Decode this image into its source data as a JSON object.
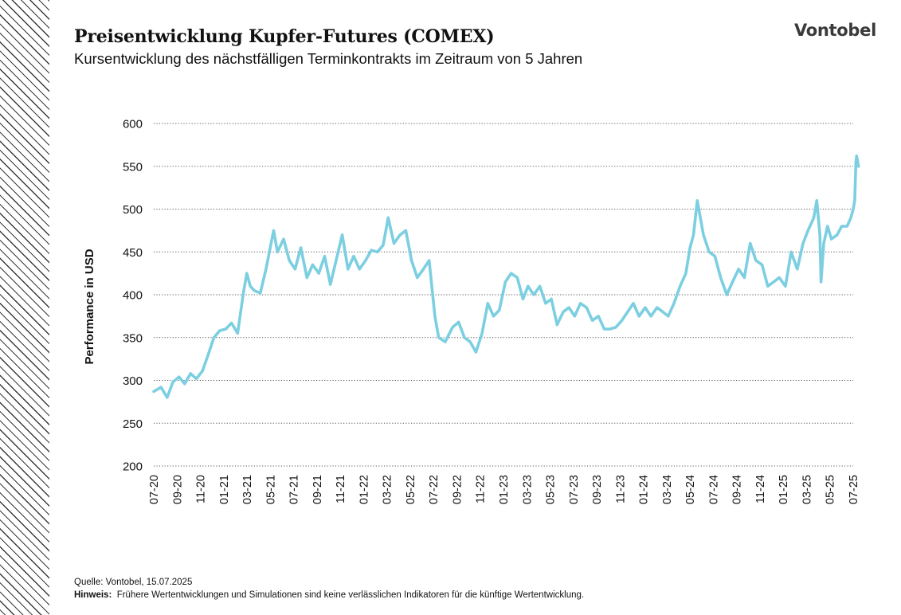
{
  "header": {
    "title": "Preisentwicklung Kupfer-Futures (COMEX)",
    "subtitle": "Kursentwicklung des nächstfälligen Terminkontrakts im Zeitraum von 5 Jahren",
    "brand": "Vontobel"
  },
  "footer": {
    "source": "Quelle: Vontobel, 15.07.2025",
    "note_label": "Hinweis:",
    "note_text": "Frühere Wertentwicklungen und Simulationen sind keine verlässlichen Indikatoren für die künftige Wertentwicklung."
  },
  "colors": {
    "line": "#7ccfe0",
    "grid": "#555555",
    "stripes": "#3a3a3a"
  },
  "chart_data": {
    "type": "line",
    "ylabel": "Performance in USD",
    "xlabel": "",
    "ylim": [
      200,
      600
    ],
    "yticks": [
      200,
      250,
      300,
      350,
      400,
      450,
      500,
      550,
      600
    ],
    "xlim": [
      "2020-07",
      "2025-07"
    ],
    "xticks": [
      "07-20",
      "09-20",
      "11-20",
      "01-21",
      "03-21",
      "05-21",
      "07-21",
      "09-21",
      "11-21",
      "01-22",
      "03-22",
      "05-22",
      "07-22",
      "09-22",
      "11-22",
      "01-23",
      "03-23",
      "05-23",
      "07-23",
      "09-23",
      "11-23",
      "01-24",
      "03-24",
      "05-24",
      "07-24",
      "09-24",
      "11-24",
      "01-25",
      "03-25",
      "05-25",
      "07-25"
    ],
    "grid": "horizontal dotted",
    "legend": "none",
    "series": [
      {
        "x": [
          "2020-07-01",
          "2020-07-20",
          "2020-08-05",
          "2020-08-20",
          "2020-09-05",
          "2020-09-20",
          "2020-10-05",
          "2020-10-20",
          "2020-11-05",
          "2020-11-20",
          "2020-12-05",
          "2020-12-20",
          "2021-01-05",
          "2021-01-20",
          "2021-02-05",
          "2021-02-20",
          "2021-03-01",
          "2021-03-10",
          "2021-03-20",
          "2021-04-05",
          "2021-04-20",
          "2021-05-01",
          "2021-05-10",
          "2021-05-20",
          "2021-06-05",
          "2021-06-20",
          "2021-07-05",
          "2021-07-20",
          "2021-08-05",
          "2021-08-20",
          "2021-09-05",
          "2021-09-20",
          "2021-10-05",
          "2021-10-20",
          "2021-11-05",
          "2021-11-20",
          "2021-12-05",
          "2021-12-20",
          "2022-01-05",
          "2022-01-20",
          "2022-02-05",
          "2022-02-20",
          "2022-03-05",
          "2022-03-20",
          "2022-04-05",
          "2022-04-20",
          "2022-05-05",
          "2022-05-20",
          "2022-06-05",
          "2022-06-20",
          "2022-07-05",
          "2022-07-15",
          "2022-08-01",
          "2022-08-20",
          "2022-09-05",
          "2022-09-20",
          "2022-10-05",
          "2022-10-20",
          "2022-11-05",
          "2022-11-20",
          "2022-12-05",
          "2022-12-20",
          "2023-01-05",
          "2023-01-20",
          "2023-02-05",
          "2023-02-20",
          "2023-03-05",
          "2023-03-20",
          "2023-04-05",
          "2023-04-20",
          "2023-05-05",
          "2023-05-20",
          "2023-06-05",
          "2023-06-20",
          "2023-07-05",
          "2023-07-20",
          "2023-08-05",
          "2023-08-20",
          "2023-09-05",
          "2023-09-20",
          "2023-10-05",
          "2023-10-20",
          "2023-11-05",
          "2023-11-20",
          "2023-12-05",
          "2023-12-20",
          "2024-01-05",
          "2024-01-20",
          "2024-02-05",
          "2024-02-20",
          "2024-03-05",
          "2024-03-20",
          "2024-04-05",
          "2024-04-20",
          "2024-05-01",
          "2024-05-10",
          "2024-05-20",
          "2024-06-05",
          "2024-06-20",
          "2024-07-05",
          "2024-07-20",
          "2024-08-05",
          "2024-08-20",
          "2024-09-05",
          "2024-09-20",
          "2024-10-05",
          "2024-10-20",
          "2024-11-05",
          "2024-11-20",
          "2024-12-05",
          "2024-12-20",
          "2025-01-05",
          "2025-01-20",
          "2025-02-05",
          "2025-02-20",
          "2025-03-05",
          "2025-03-20",
          "2025-03-28",
          "2025-04-05",
          "2025-04-08",
          "2025-04-15",
          "2025-04-25",
          "2025-05-05",
          "2025-05-20",
          "2025-06-01",
          "2025-06-15",
          "2025-06-25",
          "2025-07-01",
          "2025-07-05",
          "2025-07-08",
          "2025-07-10",
          "2025-07-15"
        ],
        "y": [
          287,
          292,
          280,
          298,
          304,
          296,
          308,
          302,
          311,
          330,
          350,
          358,
          360,
          367,
          355,
          402,
          425,
          410,
          405,
          402,
          430,
          455,
          475,
          450,
          465,
          440,
          430,
          455,
          420,
          435,
          425,
          445,
          412,
          440,
          470,
          430,
          445,
          430,
          440,
          452,
          450,
          458,
          490,
          460,
          470,
          475,
          440,
          420,
          430,
          440,
          375,
          350,
          345,
          362,
          368,
          350,
          345,
          333,
          355,
          390,
          375,
          382,
          415,
          425,
          420,
          395,
          410,
          400,
          410,
          390,
          395,
          365,
          380,
          385,
          375,
          390,
          385,
          370,
          375,
          360,
          360,
          362,
          370,
          380,
          390,
          375,
          385,
          375,
          385,
          380,
          375,
          390,
          410,
          425,
          455,
          470,
          510,
          470,
          450,
          445,
          420,
          400,
          415,
          430,
          420,
          460,
          440,
          435,
          410,
          415,
          420,
          410,
          450,
          430,
          460,
          475,
          490,
          510,
          470,
          415,
          460,
          480,
          465,
          470,
          480,
          480,
          490,
          500,
          510,
          555,
          562,
          550
        ]
      }
    ]
  }
}
